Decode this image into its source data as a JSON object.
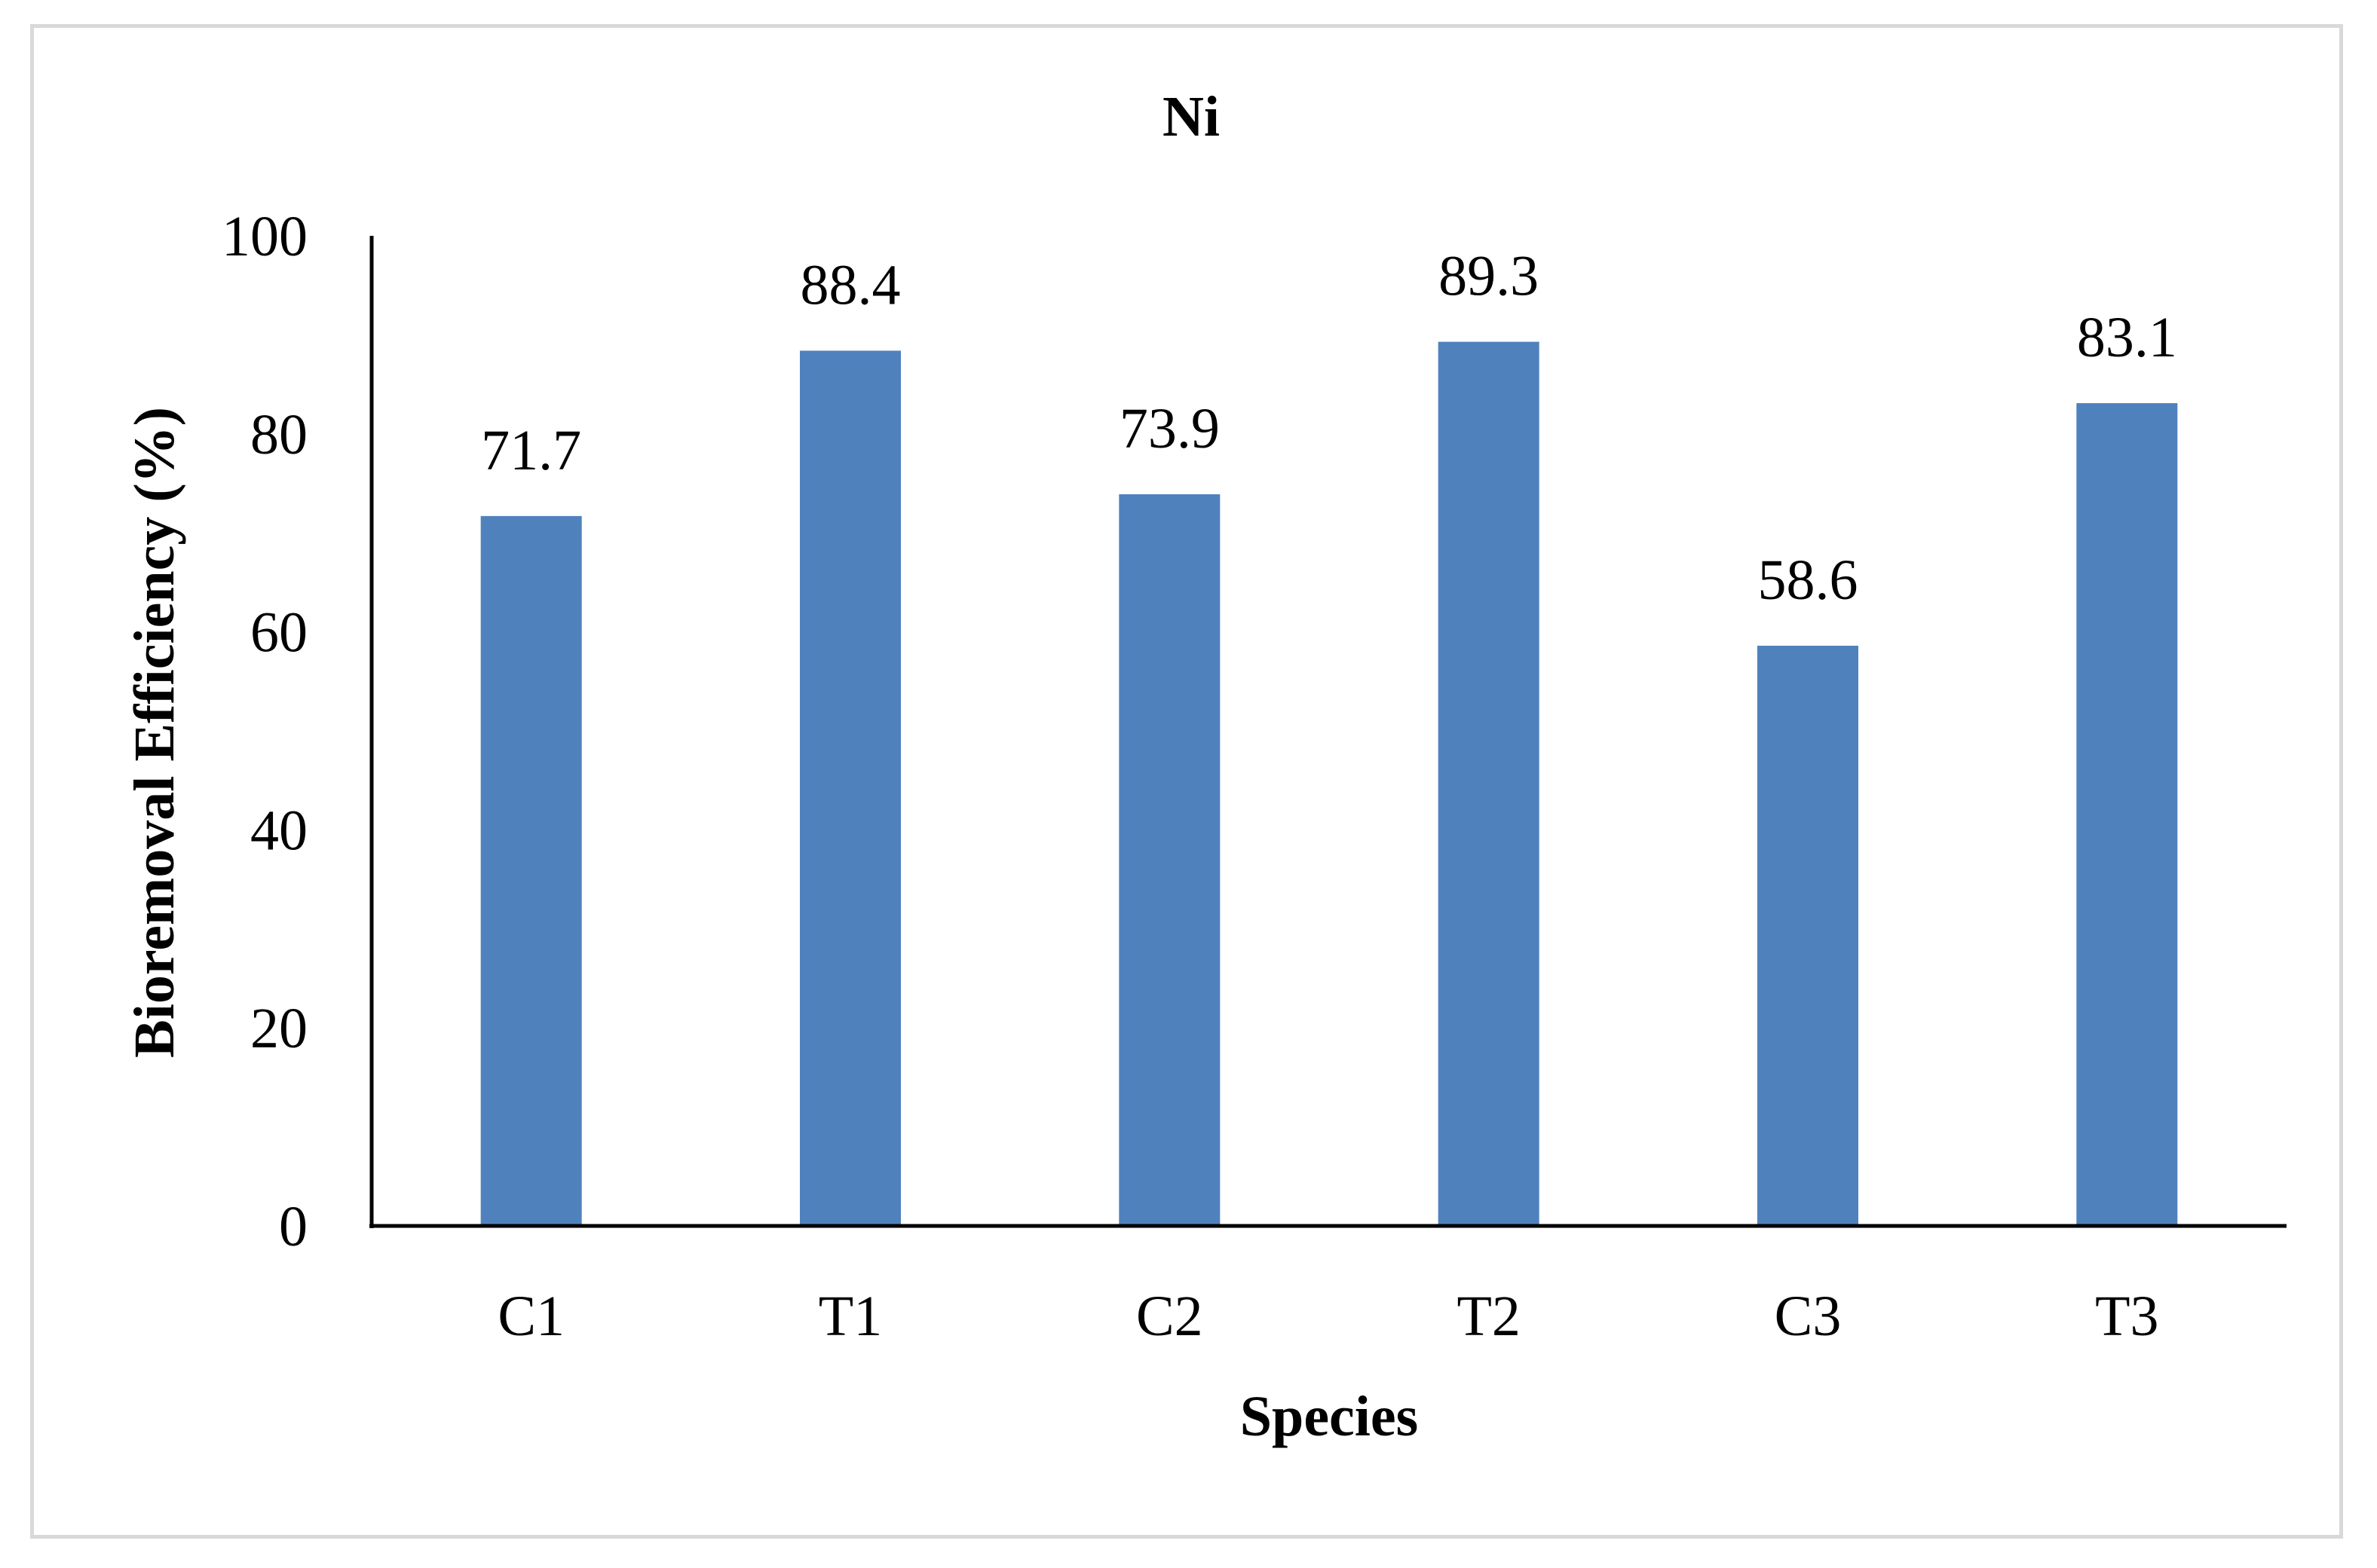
{
  "chart_data": {
    "type": "bar",
    "title": "Ni",
    "xlabel": "Species",
    "ylabel": "Bioremoval Efficiency (%)",
    "categories": [
      "C1",
      "T1",
      "C2",
      "T2",
      "C3",
      "T3"
    ],
    "values": [
      71.7,
      88.4,
      73.9,
      89.3,
      58.6,
      83.1
    ],
    "value_labels": [
      "71.7",
      "88.4",
      "73.9",
      "89.3",
      "58.6",
      "83.1"
    ],
    "ylim": [
      0,
      100
    ],
    "yticks": [
      0,
      20,
      40,
      60,
      80,
      100
    ],
    "ytick_labels": [
      "0",
      "20",
      "40",
      "60",
      "80",
      "100"
    ],
    "grid": false,
    "bar_color": "#4f81bd",
    "axis_color": "#000000"
  }
}
